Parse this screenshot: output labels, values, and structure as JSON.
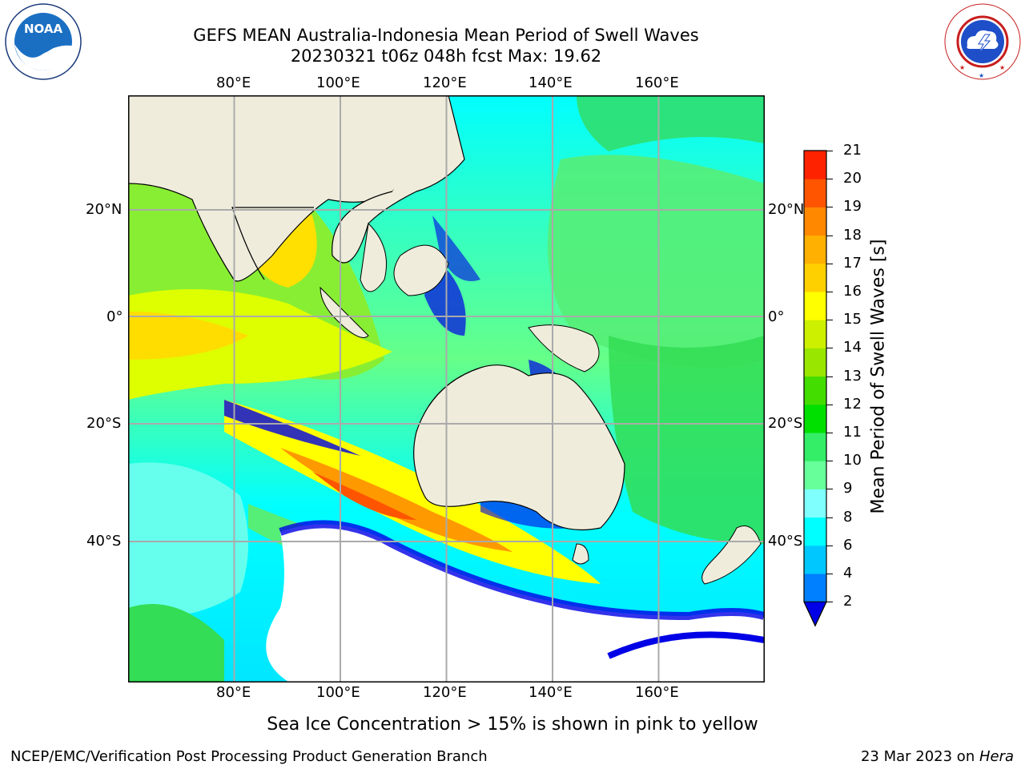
{
  "header": {
    "title_line1": "GEFS MEAN Australia-Indonesia Mean Period of Swell Waves",
    "title_line2": "20230321 t06z 048h fcst   Max: 19.62"
  },
  "logos": {
    "left": {
      "name": "NOAA",
      "ring_text": "NATIONAL OCEANIC AND ATMOSPHERIC ADMINISTRATION",
      "bottom_text": "U.S. DEPARTMENT OF COMMERCE"
    },
    "right": {
      "ring_text": "NATIONAL WEATHER SERVICE"
    }
  },
  "map": {
    "lon_ticks": [
      "80°E",
      "100°E",
      "120°E",
      "140°E",
      "160°E"
    ],
    "lat_ticks_left": [
      "20°N",
      "0°",
      "20°S",
      "40°S"
    ],
    "lat_ticks_right": [
      "20°N",
      "0°",
      "20°S",
      "40°S"
    ],
    "extent": {
      "lon": [
        60,
        180
      ],
      "lat": [
        -68,
        40
      ]
    },
    "colors": {
      "land": "#efecdc",
      "ocean_mix": [
        "#00ffff",
        "#44ff88",
        "#00c800",
        "#ffff00",
        "#ff8c00",
        "#0000e6"
      ]
    }
  },
  "colorbar": {
    "label": "Mean Period of Swell Waves [s]",
    "ticks": [
      "2",
      "4",
      "6",
      "8",
      "9",
      "10",
      "11",
      "12",
      "13",
      "14",
      "15",
      "16",
      "17",
      "18",
      "19",
      "20",
      "21"
    ],
    "colors": [
      "#0080ff",
      "#00c8ff",
      "#00ffff",
      "#80ffff",
      "#66ff99",
      "#33ee66",
      "#00e000",
      "#44dd00",
      "#99e600",
      "#ccf000",
      "#ffff00",
      "#ffd000",
      "#ffb000",
      "#ff8800",
      "#ff5500",
      "#ff2200"
    ],
    "under_color": "#0000e6"
  },
  "note": "Sea Ice Concentration > 15% is shown in pink to yellow",
  "footer": {
    "left": "NCEP/EMC/Verification Post Processing Product Generation Branch",
    "date": "23 Mar 2023",
    "on": " on ",
    "host": "Hera"
  }
}
